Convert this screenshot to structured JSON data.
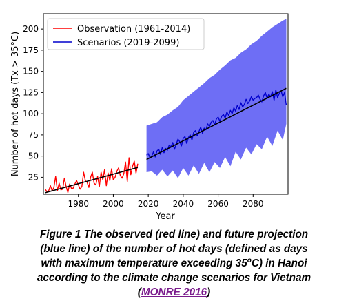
{
  "chart_data": {
    "type": "line",
    "xlabel": "Year",
    "ylabel": "Number of hot days (Tx > 35°C)",
    "xlim": [
      1960,
      2100
    ],
    "ylim": [
      5,
      218
    ],
    "x_ticks": [
      1980,
      2000,
      2020,
      2040,
      2060,
      2080
    ],
    "y_ticks": [
      25,
      50,
      75,
      100,
      125,
      150,
      175,
      200
    ],
    "legend_position": "top-left",
    "grid": false,
    "series": [
      {
        "name": "Observation (1961-2014)",
        "color": "#ff0000",
        "x": [
          1961,
          1962,
          1963,
          1964,
          1965,
          1966,
          1967,
          1968,
          1969,
          1970,
          1971,
          1972,
          1973,
          1974,
          1975,
          1976,
          1977,
          1978,
          1979,
          1980,
          1981,
          1982,
          1983,
          1984,
          1985,
          1986,
          1987,
          1988,
          1989,
          1990,
          1991,
          1992,
          1993,
          1994,
          1995,
          1996,
          1997,
          1998,
          1999,
          2000,
          2001,
          2002,
          2003,
          2004,
          2005,
          2006,
          2007,
          2008,
          2009,
          2010,
          2011,
          2012,
          2013,
          2014
        ],
        "values": [
          11,
          8,
          9,
          15,
          9,
          13,
          26,
          9,
          18,
          10,
          11,
          24,
          14,
          7,
          17,
          12,
          12,
          17,
          21,
          16,
          11,
          14,
          31,
          21,
          19,
          13,
          25,
          31,
          18,
          16,
          26,
          14,
          31,
          22,
          34,
          15,
          30,
          21,
          35,
          22,
          25,
          32,
          36,
          27,
          24,
          29,
          43,
          20,
          48,
          28,
          38,
          44,
          30,
          41
        ]
      },
      {
        "name": "Scenarios (2019-2099)",
        "color": "#0000cc",
        "x": [
          2019,
          2020,
          2021,
          2022,
          2023,
          2024,
          2025,
          2026,
          2027,
          2028,
          2029,
          2030,
          2031,
          2032,
          2033,
          2034,
          2035,
          2036,
          2037,
          2038,
          2039,
          2040,
          2041,
          2042,
          2043,
          2044,
          2045,
          2046,
          2047,
          2048,
          2049,
          2050,
          2051,
          2052,
          2053,
          2054,
          2055,
          2056,
          2057,
          2058,
          2059,
          2060,
          2061,
          2062,
          2063,
          2064,
          2065,
          2066,
          2067,
          2068,
          2069,
          2070,
          2071,
          2072,
          2073,
          2074,
          2075,
          2076,
          2077,
          2078,
          2079,
          2080,
          2081,
          2082,
          2083,
          2084,
          2085,
          2086,
          2087,
          2088,
          2089,
          2090,
          2091,
          2092,
          2093,
          2094,
          2095,
          2096,
          2097,
          2098,
          2099
        ],
        "values": [
          51,
          53,
          48,
          50,
          55,
          49,
          56,
          58,
          52,
          60,
          54,
          59,
          57,
          63,
          61,
          66,
          58,
          64,
          70,
          67,
          62,
          71,
          73,
          65,
          72,
          75,
          69,
          78,
          80,
          74,
          79,
          84,
          77,
          83,
          81,
          88,
          85,
          90,
          92,
          87,
          94,
          96,
          91,
          97,
          99,
          95,
          102,
          98,
          104,
          100,
          107,
          103,
          110,
          105,
          113,
          108,
          111,
          117,
          112,
          115,
          120,
          116,
          118,
          119,
          122,
          117,
          114,
          121,
          125,
          118,
          123,
          120,
          126,
          116,
          128,
          119,
          124,
          127,
          120,
          125,
          110
        ]
      }
    ],
    "trend_lines": [
      {
        "x": [
          1961,
          2014
        ],
        "values": [
          6.7,
          36.6
        ]
      },
      {
        "x": [
          2019,
          2099
        ],
        "values": [
          46,
          130
        ]
      }
    ],
    "scenario_range": {
      "color": "#6e6ef5",
      "x": [
        2019,
        2022,
        2025,
        2028,
        2031,
        2034,
        2037,
        2040,
        2043,
        2046,
        2049,
        2052,
        2055,
        2058,
        2061,
        2064,
        2067,
        2070,
        2073,
        2076,
        2079,
        2082,
        2085,
        2088,
        2091,
        2094,
        2097,
        2099
      ],
      "upper": [
        86,
        88,
        90,
        96,
        99,
        104,
        108,
        116,
        121,
        126,
        131,
        136,
        142,
        146,
        152,
        157,
        163,
        166,
        172,
        176,
        182,
        186,
        192,
        197,
        202,
        206,
        210,
        212
      ],
      "lower": [
        31,
        32,
        27,
        34,
        26,
        33,
        24,
        36,
        27,
        39,
        29,
        42,
        31,
        43,
        36,
        49,
        38,
        55,
        46,
        60,
        52,
        64,
        58,
        73,
        62,
        80,
        69,
        88
      ]
    }
  },
  "caption": {
    "line1": "Figure 1 The observed (red line) and future projection",
    "line2": "(blue line) of the number of hot days (defined as days",
    "line3_pre": "with maximum temperature exceeding 35",
    "line3_sup": "o",
    "line3_post": "C) in Hanoi",
    "line4": "according to the climate change scenarios for Vietnam",
    "line5_open": "(",
    "line5_link": "MONRE 2016",
    "line5_close": ")"
  }
}
